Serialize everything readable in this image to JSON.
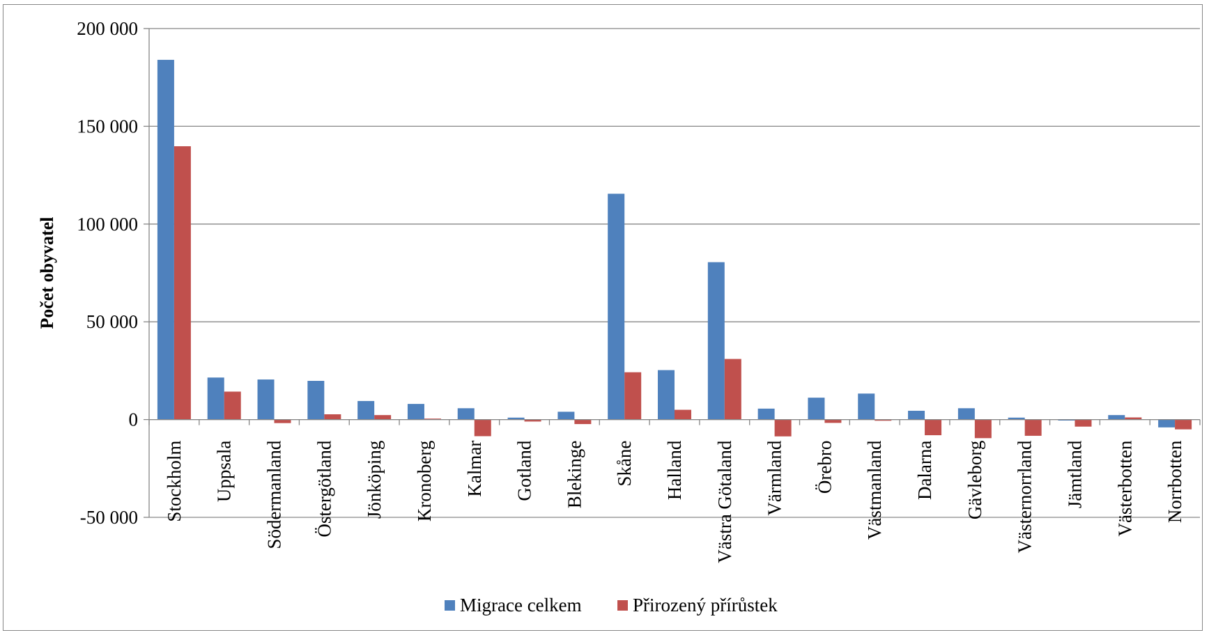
{
  "chart_data": {
    "type": "bar",
    "ylabel": "Počet obyvatel",
    "xlabel": "",
    "ylim": [
      -50000,
      200000
    ],
    "yticks": [
      -50000,
      0,
      50000,
      100000,
      150000,
      200000
    ],
    "ytick_labels": [
      "-50 000",
      "0",
      "50 000",
      "100 000",
      "150 000",
      "200 000"
    ],
    "grid": true,
    "legend_position": "bottom",
    "categories": [
      "Stockholm",
      "Uppsala",
      "Södermanland",
      "Östergötland",
      "Jönköping",
      "Kronoberg",
      "Kalmar",
      "Gotland",
      "Blekinge",
      "Skåne",
      "Halland",
      "Västra Götaland",
      "Värmland",
      "Örebro",
      "Västmanland",
      "Dalarna",
      "Gävleborg",
      "Västernorrland",
      "Jämtland",
      "Västerbotten",
      "Norrbotten"
    ],
    "series": [
      {
        "name": "Migrace celkem",
        "color": "#4f81bd",
        "values": [
          184000,
          21500,
          20500,
          19800,
          9500,
          8000,
          5800,
          1000,
          4000,
          115500,
          25300,
          80500,
          5600,
          11200,
          13300,
          4500,
          5800,
          1000,
          -500,
          2300,
          -4000
        ]
      },
      {
        "name": "Přirozený přírůstek",
        "color": "#c0504d",
        "values": [
          139800,
          14300,
          -1800,
          2700,
          2300,
          500,
          -8500,
          -1000,
          -2300,
          24200,
          5000,
          31000,
          -8600,
          -1700,
          -600,
          -8000,
          -9500,
          -8300,
          -3600,
          1100,
          -5000
        ]
      }
    ]
  }
}
